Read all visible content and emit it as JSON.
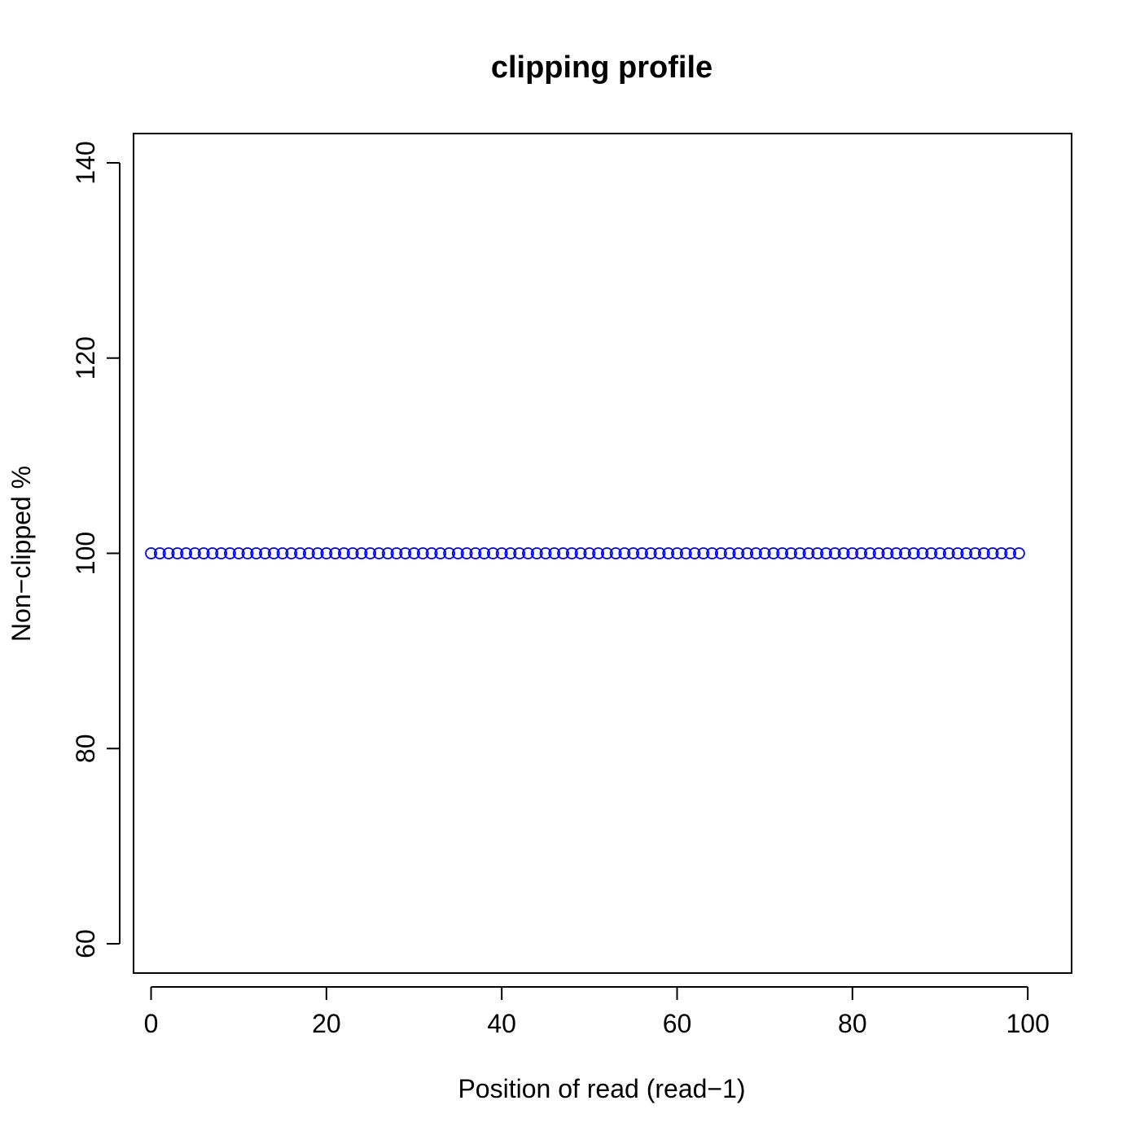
{
  "chart_data": {
    "type": "scatter",
    "title": "clipping profile",
    "xlabel": "Position of read (read−1)",
    "ylabel": "Non−clipped %",
    "xlim": [
      -2,
      105
    ],
    "ylim": [
      57,
      143
    ],
    "x_ticks": [
      0,
      20,
      40,
      60,
      80,
      100
    ],
    "x_tick_labels": [
      "0",
      "20",
      "40",
      "60",
      "80",
      "100"
    ],
    "y_ticks": [
      60,
      80,
      100,
      120,
      140
    ],
    "y_tick_labels": [
      "60",
      "80",
      "100",
      "120",
      "140"
    ],
    "grid": false,
    "legend": "none",
    "marker": "open-circle",
    "point_color": "#0000ff",
    "series": [
      {
        "x": [
          0,
          1,
          2,
          3,
          4,
          5,
          6,
          7,
          8,
          9,
          10,
          11,
          12,
          13,
          14,
          15,
          16,
          17,
          18,
          19,
          20,
          21,
          22,
          23,
          24,
          25,
          26,
          27,
          28,
          29,
          30,
          31,
          32,
          33,
          34,
          35,
          36,
          37,
          38,
          39,
          40,
          41,
          42,
          43,
          44,
          45,
          46,
          47,
          48,
          49,
          50,
          51,
          52,
          53,
          54,
          55,
          56,
          57,
          58,
          59,
          60,
          61,
          62,
          63,
          64,
          65,
          66,
          67,
          68,
          69,
          70,
          71,
          72,
          73,
          74,
          75,
          76,
          77,
          78,
          79,
          80,
          81,
          82,
          83,
          84,
          85,
          86,
          87,
          88,
          89,
          90,
          91,
          92,
          93,
          94,
          95,
          96,
          97,
          98,
          99
        ],
        "y": [
          100,
          100,
          100,
          100,
          100,
          100,
          100,
          100,
          100,
          100,
          100,
          100,
          100,
          100,
          100,
          100,
          100,
          100,
          100,
          100,
          100,
          100,
          100,
          100,
          100,
          100,
          100,
          100,
          100,
          100,
          100,
          100,
          100,
          100,
          100,
          100,
          100,
          100,
          100,
          100,
          100,
          100,
          100,
          100,
          100,
          100,
          100,
          100,
          100,
          100,
          100,
          100,
          100,
          100,
          100,
          100,
          100,
          100,
          100,
          100,
          100,
          100,
          100,
          100,
          100,
          100,
          100,
          100,
          100,
          100,
          100,
          100,
          100,
          100,
          100,
          100,
          100,
          100,
          100,
          100,
          100,
          100,
          100,
          100,
          100,
          100,
          100,
          100,
          100,
          100,
          100,
          100,
          100,
          100,
          100,
          100,
          100,
          100,
          100,
          100
        ]
      }
    ]
  }
}
